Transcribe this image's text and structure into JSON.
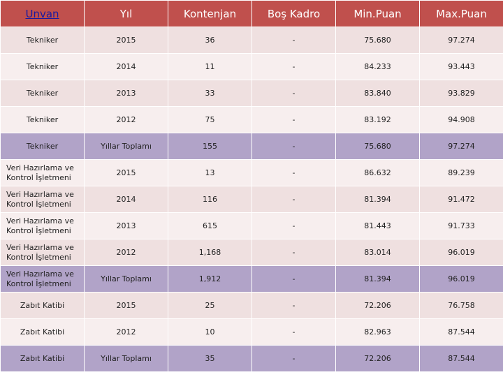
{
  "headers": [
    "Unvan",
    "Yıl",
    "Kontenjan",
    "Boş Kadro",
    "Min.Puan",
    "Max.Puan"
  ],
  "rows": [
    {
      "unvan": "Tekniker",
      "yil": "2015",
      "kontenjan": "36",
      "bos": "-",
      "min": "75.680",
      "max": "97.274",
      "type": "odd"
    },
    {
      "unvan": "Tekniker",
      "yil": "2014",
      "kontenjan": "11",
      "bos": "-",
      "min": "84.233",
      "max": "93.443",
      "type": "even"
    },
    {
      "unvan": "Tekniker",
      "yil": "2013",
      "kontenjan": "33",
      "bos": "-",
      "min": "83.840",
      "max": "93.829",
      "type": "odd"
    },
    {
      "unvan": "Tekniker",
      "yil": "2012",
      "kontenjan": "75",
      "bos": "-",
      "min": "83.192",
      "max": "94.908",
      "type": "even"
    },
    {
      "unvan": "Tekniker",
      "yil": "Yıllar Toplamı",
      "kontenjan": "155",
      "bos": "-",
      "min": "75.680",
      "max": "97.274",
      "type": "total"
    },
    {
      "unvan": "Veri Hazırlama ve Kontrol İşletmeni",
      "yil": "2015",
      "kontenjan": "13",
      "bos": "-",
      "min": "86.632",
      "max": "89.239",
      "type": "even"
    },
    {
      "unvan": "Veri Hazırlama ve Kontrol İşletmeni",
      "yil": "2014",
      "kontenjan": "116",
      "bos": "-",
      "min": "81.394",
      "max": "91.472",
      "type": "odd"
    },
    {
      "unvan": "Veri Hazırlama ve Kontrol İşletmeni",
      "yil": "2013",
      "kontenjan": "615",
      "bos": "-",
      "min": "81.443",
      "max": "91.733",
      "type": "even"
    },
    {
      "unvan": "Veri Hazırlama ve Kontrol İşletmeni",
      "yil": "2012",
      "kontenjan": "1,168",
      "bos": "-",
      "min": "83.014",
      "max": "96.019",
      "type": "odd"
    },
    {
      "unvan": "Veri Hazırlama ve Kontrol İşletmeni",
      "yil": "Yıllar Toplamı",
      "kontenjan": "1,912",
      "bos": "-",
      "min": "81.394",
      "max": "96.019",
      "type": "total"
    },
    {
      "unvan": "Zabıt Katibi",
      "yil": "2015",
      "kontenjan": "25",
      "bos": "-",
      "min": "72.206",
      "max": "76.758",
      "type": "odd"
    },
    {
      "unvan": "Zabıt Katibi",
      "yil": "2012",
      "kontenjan": "10",
      "bos": "-",
      "min": "82.963",
      "max": "87.544",
      "type": "even"
    },
    {
      "unvan": "Zabıt Katibi",
      "yil": "Yıllar Toplamı",
      "kontenjan": "35",
      "bos": "-",
      "min": "72.206",
      "max": "87.544",
      "type": "total"
    }
  ],
  "colors": {
    "header_bg": "#c0504d",
    "row_odd": "#efe0e0",
    "row_even": "#f7eeee",
    "row_total": "#b1a3c8",
    "link_text": "#1a1aa0"
  }
}
